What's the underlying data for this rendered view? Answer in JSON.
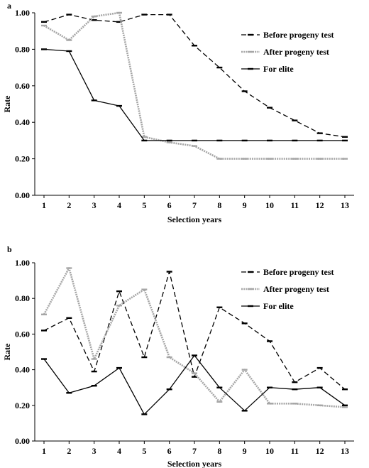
{
  "chart_data": [
    {
      "type": "line",
      "panel_label": "a",
      "xlabel": "Selection years",
      "ylabel": "Rate",
      "x": [
        1,
        2,
        3,
        4,
        5,
        6,
        7,
        8,
        9,
        10,
        11,
        12,
        13
      ],
      "ylim": [
        0.0,
        1.0
      ],
      "yticks": [
        "0.00",
        "0.20",
        "0.40",
        "0.60",
        "0.80",
        "1.00"
      ],
      "grid": false,
      "legend_position": "top-right",
      "series": [
        {
          "name": "Before progeny test",
          "style": "dashed",
          "color": "#000000",
          "values": [
            0.95,
            0.99,
            0.96,
            0.95,
            0.99,
            0.99,
            0.82,
            0.7,
            0.57,
            0.48,
            0.41,
            0.34,
            0.32
          ]
        },
        {
          "name": "After progeny test",
          "style": "dotted-gray",
          "color": "#a6a6a6",
          "values": [
            0.93,
            0.85,
            0.98,
            1.0,
            0.32,
            0.29,
            0.27,
            0.2,
            0.2,
            0.2,
            0.2,
            0.2,
            0.2
          ]
        },
        {
          "name": "For elite",
          "style": "solid",
          "color": "#000000",
          "values": [
            0.8,
            0.79,
            0.52,
            0.49,
            0.3,
            0.3,
            0.3,
            0.3,
            0.3,
            0.3,
            0.3,
            0.3,
            0.3
          ]
        }
      ]
    },
    {
      "type": "line",
      "panel_label": "b",
      "xlabel": "Selection years",
      "ylabel": "Rate",
      "x": [
        1,
        2,
        3,
        4,
        5,
        6,
        7,
        8,
        9,
        10,
        11,
        12,
        13
      ],
      "ylim": [
        0.0,
        1.0
      ],
      "yticks": [
        "0.00",
        "0.20",
        "0.40",
        "0.60",
        "0.80",
        "1.00"
      ],
      "grid": false,
      "legend_position": "top-right",
      "series": [
        {
          "name": "Before progeny test",
          "style": "dashed",
          "color": "#000000",
          "values": [
            0.62,
            0.69,
            0.39,
            0.84,
            0.47,
            0.95,
            0.36,
            0.75,
            0.66,
            0.56,
            0.33,
            0.41,
            0.29
          ]
        },
        {
          "name": "After progeny test",
          "style": "dotted-gray",
          "color": "#a6a6a6",
          "values": [
            0.71,
            0.97,
            0.46,
            0.76,
            0.85,
            0.47,
            0.38,
            0.22,
            0.4,
            0.21,
            0.21,
            0.2,
            0.19
          ]
        },
        {
          "name": "For elite",
          "style": "solid",
          "color": "#000000",
          "values": [
            0.46,
            0.27,
            0.31,
            0.41,
            0.15,
            0.29,
            0.48,
            0.3,
            0.17,
            0.3,
            0.29,
            0.3,
            0.2
          ]
        }
      ]
    }
  ]
}
